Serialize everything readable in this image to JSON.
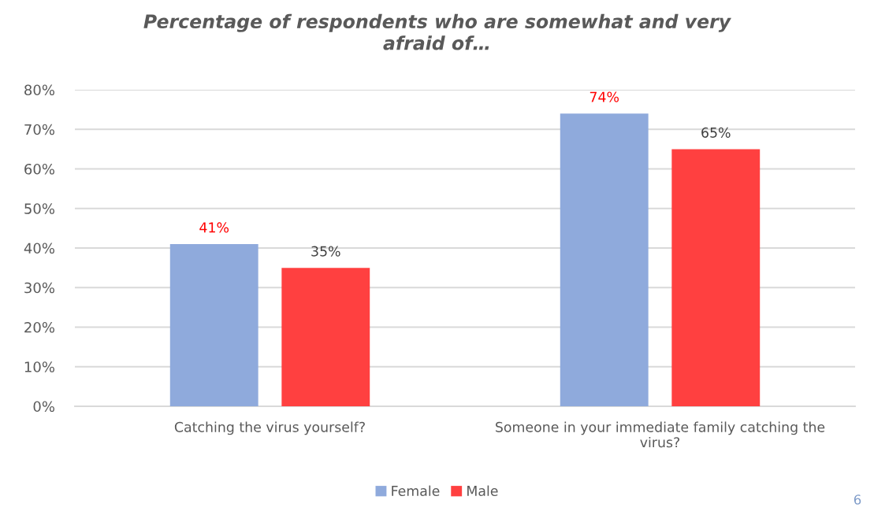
{
  "chart_data": {
    "type": "bar",
    "title": "Percentage of respondents who are somewhat and very afraid of…",
    "categories": [
      "Catching the virus yourself?",
      "Someone in your immediate family catching the virus?"
    ],
    "series": [
      {
        "name": "Female",
        "color": "#8faadc",
        "values": [
          41,
          74
        ],
        "value_labels": [
          "41%",
          "74%"
        ]
      },
      {
        "name": "Male",
        "color": "#ff4040",
        "values": [
          35,
          65
        ],
        "value_labels": [
          "35%",
          "65%"
        ]
      }
    ],
    "ylim": [
      0,
      80
    ],
    "yticks": [
      {
        "value": 0,
        "label": "0%"
      },
      {
        "value": 10,
        "label": "10%"
      },
      {
        "value": 20,
        "label": "20%"
      },
      {
        "value": 30,
        "label": "30%"
      },
      {
        "value": 40,
        "label": "40%"
      },
      {
        "value": 50,
        "label": "50%"
      },
      {
        "value": 60,
        "label": "60%"
      },
      {
        "value": 70,
        "label": "70%"
      },
      {
        "value": 80,
        "label": "80%"
      }
    ],
    "grid": "y",
    "legend": "bottom",
    "annotations": [
      "6"
    ]
  }
}
